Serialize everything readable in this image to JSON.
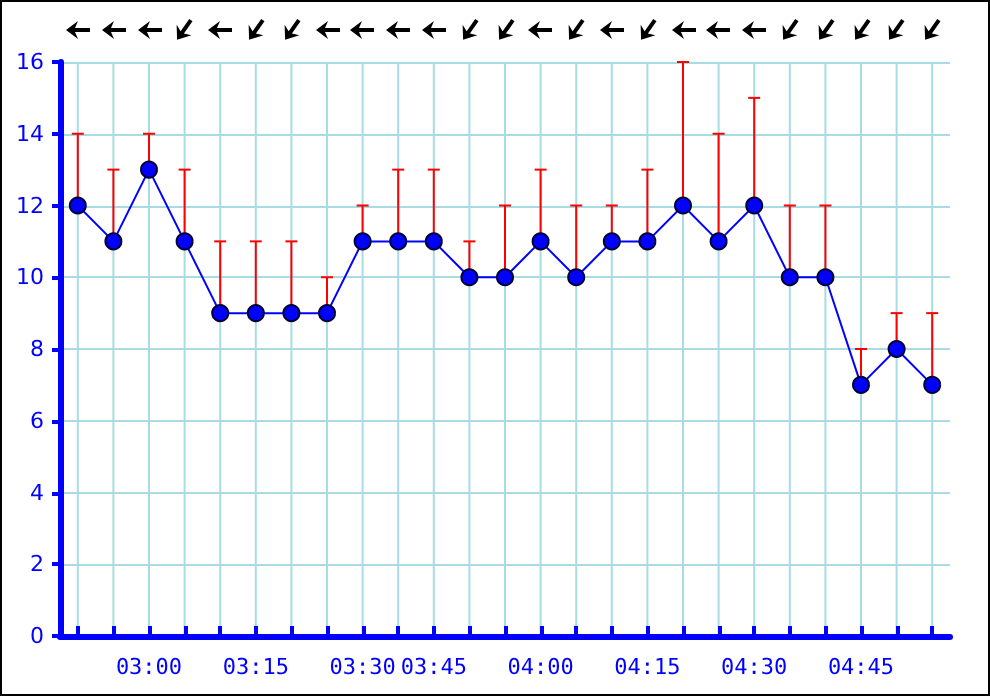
{
  "chart_data": {
    "type": "line",
    "categories": [
      null,
      null,
      "03:00",
      null,
      null,
      "03:15",
      null,
      null,
      "03:30",
      null,
      "03:45",
      null,
      null,
      "04:00",
      null,
      null,
      "04:15",
      null,
      null,
      "04:30",
      null,
      null,
      "04:45",
      null,
      null
    ],
    "series": [
      {
        "color": "#0000ff",
        "values": [
          12,
          11,
          13,
          11,
          9,
          9,
          9,
          9,
          11,
          11,
          11,
          10,
          10,
          11,
          10,
          11,
          11,
          12,
          11,
          12,
          10,
          10,
          7,
          8,
          7
        ],
        "errors": [
          [
            12,
            14
          ],
          [
            11,
            13
          ],
          [
            13,
            14
          ],
          [
            11,
            13
          ],
          [
            9,
            11
          ],
          [
            9,
            11
          ],
          [
            9,
            11
          ],
          [
            9,
            10
          ],
          [
            11,
            12
          ],
          [
            11,
            13
          ],
          [
            11,
            13
          ],
          [
            10,
            11
          ],
          [
            10,
            12
          ],
          [
            11,
            13
          ],
          [
            10,
            12
          ],
          [
            11,
            12
          ],
          [
            11,
            13
          ],
          [
            12,
            16
          ],
          [
            11,
            14
          ],
          [
            12,
            15
          ],
          [
            10,
            12
          ],
          [
            10,
            12
          ],
          [
            7,
            8
          ],
          [
            8,
            9
          ],
          [
            7,
            9
          ]
        ]
      }
    ],
    "ylim": [
      0,
      16
    ],
    "yticks": [
      0,
      2,
      4,
      6,
      8,
      10,
      12,
      14,
      16
    ],
    "grid": true,
    "marker": "circle",
    "line_style": "solid"
  }
}
